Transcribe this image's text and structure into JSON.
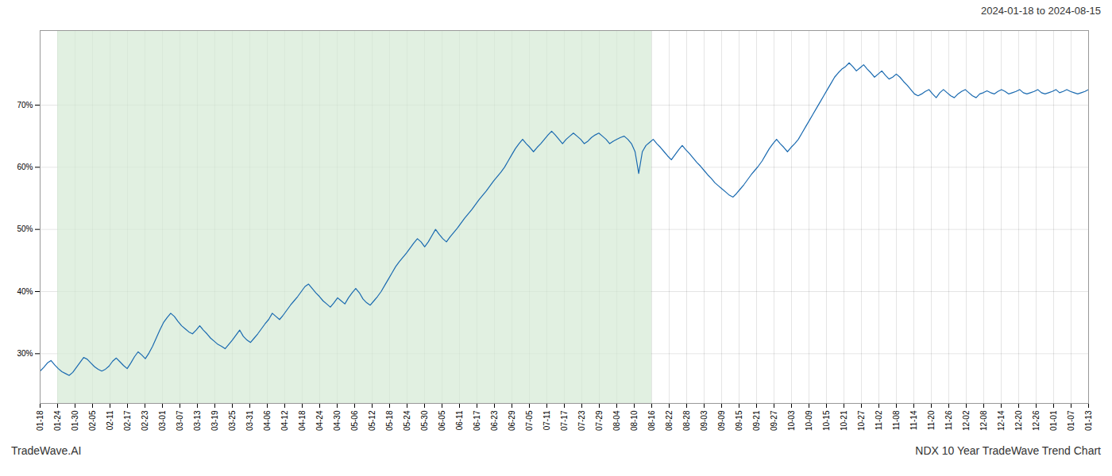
{
  "chart_data": {
    "type": "line",
    "title": "2024-01-18 to 2024-08-15",
    "annotations": [
      "TradeWave.AI",
      "NDX 10 Year TradeWave Trend Chart"
    ],
    "color": "#1a6ab0",
    "grid": true,
    "spans": [
      {
        "x1": 4.816666666666666,
        "x2": 168.58333333333334,
        "color": "#d4ead4"
      }
    ],
    "xlim": [
      0,
      289
    ],
    "xticks": [
      {
        "value": 0,
        "label": "01-18"
      },
      {
        "value": 4.816666666666666,
        "label": "01-24"
      },
      {
        "value": 9.633333333333333,
        "label": "01-30"
      },
      {
        "value": 14.45,
        "label": "02-05"
      },
      {
        "value": 19.266666666666666,
        "label": "02-11"
      },
      {
        "value": 24.083333333333332,
        "label": "02-17"
      },
      {
        "value": 28.9,
        "label": "02-23"
      },
      {
        "value": 33.71666666666667,
        "label": "03-01"
      },
      {
        "value": 38.53333333333333,
        "label": "03-07"
      },
      {
        "value": 43.35,
        "label": "03-13"
      },
      {
        "value": 48.166666666666664,
        "label": "03-19"
      },
      {
        "value": 52.983333333333334,
        "label": "03-25"
      },
      {
        "value": 57.8,
        "label": "03-31"
      },
      {
        "value": 62.61666666666667,
        "label": "04-06"
      },
      {
        "value": 67.43333333333334,
        "label": "04-12"
      },
      {
        "value": 72.25,
        "label": "04-18"
      },
      {
        "value": 77.06666666666666,
        "label": "04-24"
      },
      {
        "value": 81.88333333333334,
        "label": "04-30"
      },
      {
        "value": 86.7,
        "label": "05-06"
      },
      {
        "value": 91.51666666666667,
        "label": "05-12"
      },
      {
        "value": 96.33333333333333,
        "label": "05-18"
      },
      {
        "value": 101.15,
        "label": "05-24"
      },
      {
        "value": 105.96666666666667,
        "label": "05-30"
      },
      {
        "value": 110.78333333333333,
        "label": "06-05"
      },
      {
        "value": 115.6,
        "label": "06-11"
      },
      {
        "value": 120.41666666666667,
        "label": "06-17"
      },
      {
        "value": 125.23333333333333,
        "label": "06-23"
      },
      {
        "value": 130.05,
        "label": "06-29"
      },
      {
        "value": 134.86666666666667,
        "label": "07-05"
      },
      {
        "value": 139.68333333333334,
        "label": "07-11"
      },
      {
        "value": 144.5,
        "label": "07-17"
      },
      {
        "value": 149.31666666666666,
        "label": "07-23"
      },
      {
        "value": 154.13333333333333,
        "label": "07-29"
      },
      {
        "value": 158.95,
        "label": "08-04"
      },
      {
        "value": 163.76666666666668,
        "label": "08-10"
      },
      {
        "value": 168.58333333333334,
        "label": "08-16"
      },
      {
        "value": 173.4,
        "label": "08-22"
      },
      {
        "value": 178.21666666666667,
        "label": "08-28"
      },
      {
        "value": 183.03333333333333,
        "label": "09-03"
      },
      {
        "value": 187.85,
        "label": "09-09"
      },
      {
        "value": 192.66666666666666,
        "label": "09-15"
      },
      {
        "value": 197.48333333333332,
        "label": "09-21"
      },
      {
        "value": 202.3,
        "label": "09-27"
      },
      {
        "value": 207.11666666666667,
        "label": "10-03"
      },
      {
        "value": 211.93333333333334,
        "label": "10-09"
      },
      {
        "value": 216.75,
        "label": "10-15"
      },
      {
        "value": 221.56666666666666,
        "label": "10-21"
      },
      {
        "value": 226.38333333333333,
        "label": "10-27"
      },
      {
        "value": 231.2,
        "label": "11-02"
      },
      {
        "value": 236.01666666666668,
        "label": "11-08"
      },
      {
        "value": 240.83333333333334,
        "label": "11-14"
      },
      {
        "value": 245.65,
        "label": "11-20"
      },
      {
        "value": 250.46666666666667,
        "label": "11-26"
      },
      {
        "value": 255.28333333333333,
        "label": "12-02"
      },
      {
        "value": 260.1,
        "label": "12-08"
      },
      {
        "value": 264.9166666666667,
        "label": "12-14"
      },
      {
        "value": 269.73333333333335,
        "label": "12-20"
      },
      {
        "value": 274.55,
        "label": "12-26"
      },
      {
        "value": 279.3666666666667,
        "label": "01-01"
      },
      {
        "value": 284.18333333333334,
        "label": "01-07"
      },
      {
        "value": 289,
        "label": "01-13"
      }
    ],
    "ylim": [
      22,
      82
    ],
    "yticks": [
      {
        "value": 30,
        "label": "30%"
      },
      {
        "value": 40,
        "label": "40%"
      },
      {
        "value": 50,
        "label": "50%"
      },
      {
        "value": 60,
        "label": "60%"
      },
      {
        "value": 70,
        "label": "70%"
      }
    ],
    "x": [
      0,
      1,
      2,
      3,
      4,
      5,
      6,
      7,
      8,
      9,
      10,
      11,
      12,
      13,
      14,
      15,
      16,
      17,
      18,
      19,
      20,
      21,
      22,
      23,
      24,
      25,
      26,
      27,
      28,
      29,
      30,
      31,
      32,
      33,
      34,
      35,
      36,
      37,
      38,
      39,
      40,
      41,
      42,
      43,
      44,
      45,
      46,
      47,
      48,
      49,
      50,
      51,
      52,
      53,
      54,
      55,
      56,
      57,
      58,
      59,
      60,
      61,
      62,
      63,
      64,
      65,
      66,
      67,
      68,
      69,
      70,
      71,
      72,
      73,
      74,
      75,
      76,
      77,
      78,
      79,
      80,
      81,
      82,
      83,
      84,
      85,
      86,
      87,
      88,
      89,
      90,
      91,
      92,
      93,
      94,
      95,
      96,
      97,
      98,
      99,
      100,
      101,
      102,
      103,
      104,
      105,
      106,
      107,
      108,
      109,
      110,
      111,
      112,
      113,
      114,
      115,
      116,
      117,
      118,
      119,
      120,
      121,
      122,
      123,
      124,
      125,
      126,
      127,
      128,
      129,
      130,
      131,
      132,
      133,
      134,
      135,
      136,
      137,
      138,
      139,
      140,
      141,
      142,
      143,
      144,
      145,
      146,
      147,
      148,
      149,
      150,
      151,
      152,
      153,
      154,
      155,
      156,
      157,
      158,
      159,
      160,
      161,
      162,
      163,
      164,
      165,
      166,
      167,
      168,
      169,
      170,
      171,
      172,
      173,
      174,
      175,
      176,
      177,
      178,
      179,
      180,
      181,
      182,
      183,
      184,
      185,
      186,
      187,
      188,
      189,
      190,
      191,
      192,
      193,
      194,
      195,
      196,
      197,
      198,
      199,
      200,
      201,
      202,
      203,
      204,
      205,
      206,
      207,
      208,
      209,
      210,
      211,
      212,
      213,
      214,
      215,
      216,
      217,
      218,
      219,
      220,
      221,
      222,
      223,
      224,
      225,
      226,
      227,
      228,
      229,
      230,
      231,
      232,
      233,
      234,
      235,
      236,
      237,
      238,
      239,
      240,
      241,
      242,
      243,
      244,
      245,
      246,
      247,
      248,
      249,
      250,
      251,
      252,
      253,
      254,
      255,
      256,
      257,
      258,
      259,
      260,
      261,
      262,
      263,
      264,
      265,
      266,
      267,
      268,
      269,
      270,
      271,
      272,
      273,
      274,
      275,
      276,
      277,
      278,
      279,
      280,
      281,
      282,
      283,
      284,
      285,
      286,
      287,
      288,
      289
    ],
    "values": [
      27.2,
      27.8,
      28.5,
      28.9,
      28.2,
      27.6,
      27.1,
      26.8,
      26.5,
      27.0,
      27.8,
      28.6,
      29.4,
      29.1,
      28.5,
      27.9,
      27.5,
      27.2,
      27.5,
      28.0,
      28.8,
      29.3,
      28.7,
      28.1,
      27.6,
      28.5,
      29.5,
      30.3,
      29.8,
      29.2,
      30.1,
      31.2,
      32.5,
      33.8,
      35.0,
      35.8,
      36.5,
      36.0,
      35.2,
      34.5,
      34.0,
      33.5,
      33.2,
      33.8,
      34.5,
      33.8,
      33.2,
      32.5,
      32.0,
      31.5,
      31.2,
      30.8,
      31.5,
      32.2,
      33.0,
      33.8,
      32.8,
      32.2,
      31.8,
      32.5,
      33.2,
      34.0,
      34.8,
      35.5,
      36.5,
      36.0,
      35.5,
      36.2,
      37.0,
      37.8,
      38.5,
      39.2,
      40.0,
      40.8,
      41.2,
      40.5,
      39.8,
      39.2,
      38.5,
      38.0,
      37.5,
      38.2,
      39.0,
      38.5,
      38.0,
      39.0,
      39.8,
      40.5,
      39.8,
      38.8,
      38.2,
      37.8,
      38.5,
      39.2,
      40.0,
      41.0,
      42.0,
      43.0,
      44.0,
      44.8,
      45.5,
      46.2,
      47.0,
      47.8,
      48.5,
      48.0,
      47.2,
      48.0,
      49.0,
      50.0,
      49.2,
      48.5,
      48.0,
      48.8,
      49.5,
      50.2,
      51.0,
      51.8,
      52.5,
      53.2,
      54.0,
      54.8,
      55.5,
      56.2,
      57.0,
      57.8,
      58.5,
      59.2,
      60.0,
      61.0,
      62.0,
      63.0,
      63.8,
      64.5,
      63.8,
      63.2,
      62.5,
      63.2,
      63.8,
      64.5,
      65.2,
      65.8,
      65.2,
      64.5,
      63.8,
      64.5,
      65.0,
      65.5,
      65.0,
      64.5,
      63.8,
      64.2,
      64.8,
      65.2,
      65.5,
      65.0,
      64.5,
      63.8,
      64.2,
      64.5,
      64.8,
      65.0,
      64.5,
      63.8,
      62.5,
      59.0,
      62.5,
      63.5,
      64.0,
      64.5,
      63.8,
      63.2,
      62.5,
      61.8,
      61.2,
      62.0,
      62.8,
      63.5,
      62.8,
      62.2,
      61.5,
      60.8,
      60.2,
      59.5,
      58.8,
      58.2,
      57.5,
      57.0,
      56.5,
      56.0,
      55.5,
      55.2,
      55.8,
      56.5,
      57.2,
      58.0,
      58.8,
      59.5,
      60.2,
      61.0,
      62.0,
      63.0,
      63.8,
      64.5,
      63.8,
      63.2,
      62.5,
      63.2,
      63.8,
      64.5,
      65.5,
      66.5,
      67.5,
      68.5,
      69.5,
      70.5,
      71.5,
      72.5,
      73.5,
      74.5,
      75.2,
      75.8,
      76.2,
      76.8,
      76.2,
      75.5,
      76.0,
      76.5,
      75.8,
      75.2,
      74.5,
      75.0,
      75.5,
      74.8,
      74.2,
      74.5,
      75.0,
      74.5,
      73.8,
      73.2,
      72.5,
      71.8,
      71.5,
      71.8,
      72.2,
      72.5,
      71.8,
      71.2,
      72.0,
      72.5,
      72.0,
      71.5,
      71.2,
      71.8,
      72.2,
      72.5,
      72.0,
      71.5,
      71.2,
      71.8,
      72.0,
      72.3,
      72.0,
      71.8,
      72.2,
      72.5,
      72.2,
      71.8,
      72.0,
      72.2,
      72.5,
      72.0,
      71.8,
      72.0,
      72.2,
      72.5,
      72.0,
      71.8,
      72.0,
      72.2,
      72.5,
      72.0,
      72.2,
      72.5,
      72.2,
      72.0,
      71.8,
      72.0,
      72.2,
      72.5
    ]
  }
}
